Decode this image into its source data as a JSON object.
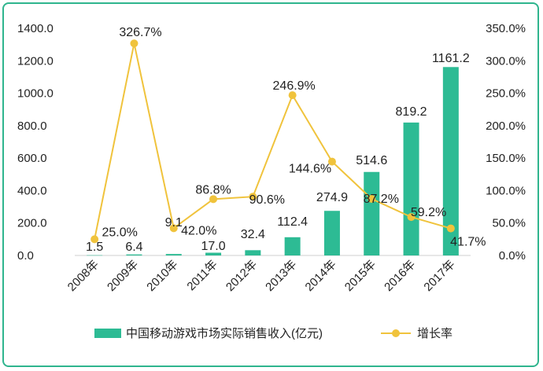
{
  "chart_data": {
    "type": "bar+line",
    "categories": [
      "2008年",
      "2009年",
      "2010年",
      "2011年",
      "2012年",
      "2013年",
      "2014年",
      "2015年",
      "2016年",
      "2017年"
    ],
    "series": [
      {
        "name": "中国移动游戏市场实际销售收入(亿元)",
        "type": "bar",
        "axis": "left",
        "color": "#2dbb94",
        "values": [
          1.5,
          6.4,
          9.1,
          17.0,
          32.4,
          112.4,
          274.9,
          514.6,
          819.2,
          1161.2
        ],
        "labels": [
          "1.5",
          "6.4",
          "9.1",
          "17.0",
          "32.4",
          "112.4",
          "274.9",
          "514.6",
          "819.2",
          "1161.2"
        ]
      },
      {
        "name": "增长率",
        "type": "line",
        "axis": "right",
        "color": "#f0c33c",
        "values": [
          25.0,
          326.7,
          42.0,
          86.8,
          90.6,
          246.9,
          144.6,
          87.2,
          59.2,
          41.7
        ],
        "labels": [
          "25.0%",
          "326.7%",
          "42.0%",
          "86.8%",
          "90.6%",
          "246.9%",
          "144.6%",
          "87.2%",
          "59.2%",
          "41.7%"
        ]
      }
    ],
    "y_left": {
      "min": 0,
      "max": 1400,
      "ticks": [
        "0.0",
        "200.0",
        "400.0",
        "600.0",
        "800.0",
        "1000.0",
        "1200.0",
        "1400.0"
      ]
    },
    "y_right": {
      "min": 0,
      "max": 350,
      "ticks": [
        "0.0%",
        "50.0%",
        "100.0%",
        "150.0%",
        "200.0%",
        "250.0%",
        "300.0%",
        "350.0%"
      ]
    },
    "legend_position": "bottom",
    "grid": false
  }
}
